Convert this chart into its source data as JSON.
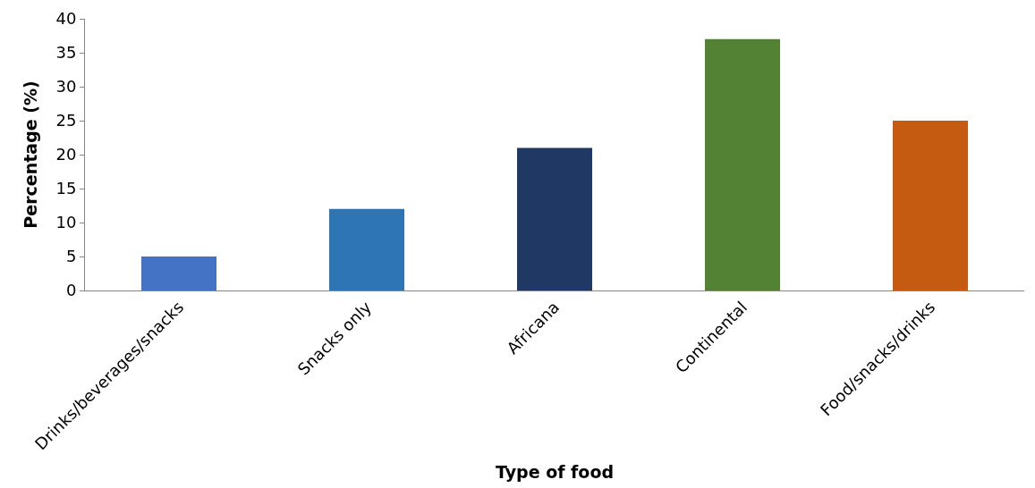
{
  "chart_data": {
    "type": "bar",
    "xlabel": "Type of food",
    "ylabel": "Percentage (%)",
    "categories": [
      "Drinks/beverages/snacks",
      "Snacks only",
      "Africana",
      "Continental",
      "Food/snacks/drinks"
    ],
    "values": [
      5,
      12,
      21,
      37,
      25
    ],
    "colors": [
      "#4472c4",
      "#2e75b6",
      "#203864",
      "#548235",
      "#c55a11"
    ],
    "ylim": [
      0,
      40
    ],
    "yticks": [
      0,
      5,
      10,
      15,
      20,
      25,
      30,
      35,
      40
    ]
  }
}
